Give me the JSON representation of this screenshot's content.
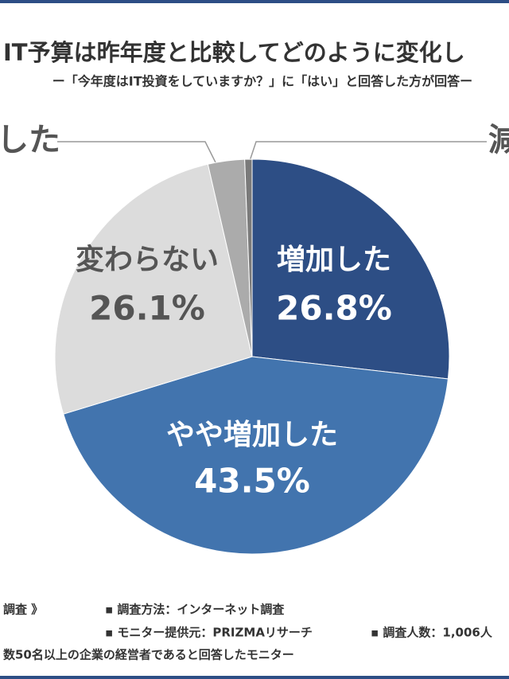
{
  "chart_data": {
    "type": "pie",
    "title": "IT予算は昨年度と比較してどのように変化し",
    "subtitle": "ー「今年度はIT投資をしていますか？」に「はい」と回答した方が回答ー",
    "categories": [
      "増加した",
      "やや増加した",
      "変わらない",
      "した",
      "減"
    ],
    "values": [
      26.8,
      43.5,
      26.1,
      3.0,
      0.6
    ],
    "value_labels": [
      "26.8%",
      "43.5%",
      "26.1%",
      null,
      null
    ],
    "colors": [
      "#2d4e85",
      "#4274ae",
      "#dcdcdc",
      "#ababab",
      "#7a7a7a"
    ]
  },
  "footer": {
    "lines": [
      "調査 》",
      "▪ 調査方法：インターネット調査",
      "▪ モニター提供元：PRIZMAリサーチ",
      "▪ 調査人数：1,006人",
      "数50名以上の企業の経営者であると回答したモニター"
    ]
  }
}
